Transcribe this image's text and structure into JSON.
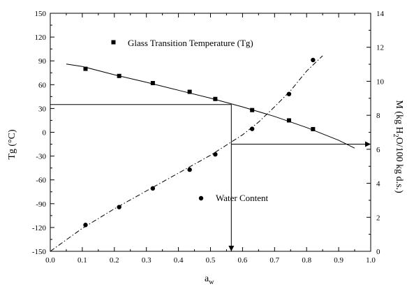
{
  "chart_data": {
    "type": "scatter",
    "xlabel": "a",
    "xlabel_sub": "w",
    "ylabel_left": "Tg (°C)",
    "ylabel_right_parts": [
      "M (kg H",
      "2",
      "O/100 kg d.s.)"
    ],
    "xlim": [
      0.0,
      1.0
    ],
    "ylim_left": [
      -150,
      150
    ],
    "ylim_right": [
      0,
      14
    ],
    "x_ticks": [
      "0.0",
      "0.1",
      "0.2",
      "0.3",
      "0.4",
      "0.5",
      "0.6",
      "0.7",
      "0.8",
      "0.9",
      "1.0"
    ],
    "y_left_ticks": [
      "-150",
      "-120",
      "-90",
      "-60",
      "-30",
      "0",
      "30",
      "60",
      "90",
      "120",
      "150"
    ],
    "y_right_ticks": [
      "0",
      "2",
      "4",
      "6",
      "8",
      "10",
      "12",
      "14"
    ],
    "series": [
      {
        "name": "Glass Transition Temperature (Tg)",
        "axis": "left",
        "marker": "square",
        "x": [
          0.11,
          0.215,
          0.32,
          0.435,
          0.515,
          0.63,
          0.745,
          0.82
        ],
        "y": [
          80,
          71,
          62,
          51,
          42,
          28,
          15,
          4
        ]
      },
      {
        "name": "Water Content",
        "axis": "right",
        "marker": "circle",
        "x": [
          0.11,
          0.215,
          0.32,
          0.435,
          0.515,
          0.63,
          0.745,
          0.82
        ],
        "y": [
          1.55,
          2.6,
          3.7,
          4.8,
          5.7,
          7.2,
          9.25,
          11.25
        ]
      }
    ],
    "fit_lines": [
      {
        "axis": "left",
        "style": "solid",
        "x": [
          0.05,
          0.1,
          0.2,
          0.3,
          0.4,
          0.5,
          0.6,
          0.7,
          0.8,
          0.9,
          0.95
        ],
        "y": [
          86,
          83,
          72.5,
          63,
          53,
          43,
          32,
          20,
          6,
          -10,
          -20
        ]
      },
      {
        "axis": "right",
        "style": "dashdot",
        "x": [
          0.0,
          0.1,
          0.2,
          0.3,
          0.4,
          0.5,
          0.6,
          0.65,
          0.7,
          0.75,
          0.8,
          0.85
        ],
        "y": [
          0.0,
          1.35,
          2.5,
          3.55,
          4.6,
          5.65,
          6.85,
          7.6,
          8.5,
          9.45,
          10.6,
          11.5
        ]
      }
    ],
    "reference_lines": [
      {
        "axis": "left",
        "from": [
          0.0,
          35
        ],
        "to": [
          0.565,
          35
        ],
        "arrow": "none"
      },
      {
        "axis": "left",
        "from": [
          0.565,
          35
        ],
        "to": [
          0.565,
          -150
        ],
        "arrow": "end"
      },
      {
        "axis": "right",
        "from": [
          0.565,
          6.3
        ],
        "to": [
          1.0,
          6.3
        ],
        "arrow": "end"
      }
    ],
    "legend_placement": "inside-plot"
  }
}
